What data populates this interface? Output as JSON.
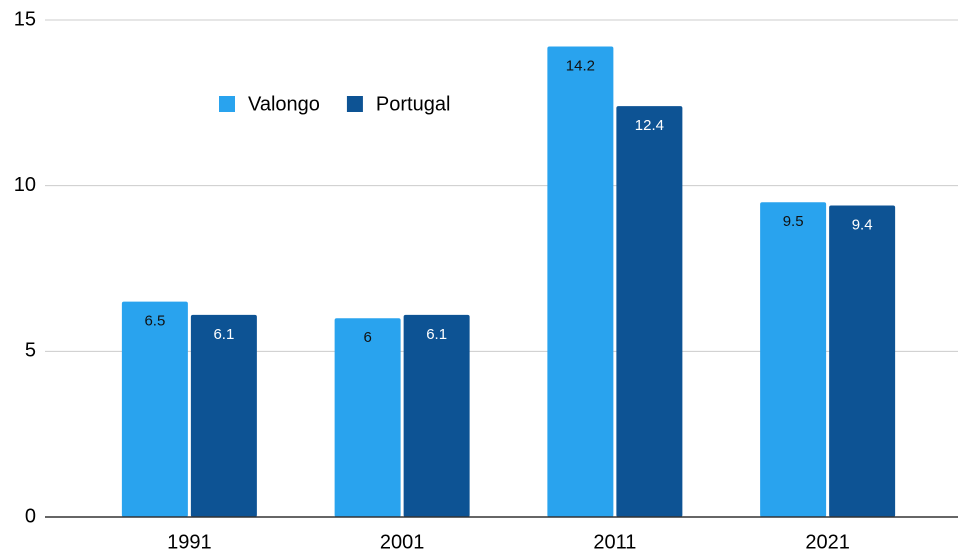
{
  "chart_data": {
    "type": "bar",
    "categories": [
      "1991",
      "2001",
      "2011",
      "2021"
    ],
    "series": [
      {
        "name": "Valongo",
        "color": "#29a3ee",
        "values": [
          6.5,
          6,
          14.2,
          9.5
        ]
      },
      {
        "name": "Portugal",
        "color": "#0d5394",
        "values": [
          6.1,
          6.1,
          12.4,
          9.4
        ]
      }
    ],
    "ylim": [
      0,
      15
    ],
    "yticks": [
      0,
      5,
      10,
      15
    ],
    "grid": true,
    "legend": "top-left"
  }
}
